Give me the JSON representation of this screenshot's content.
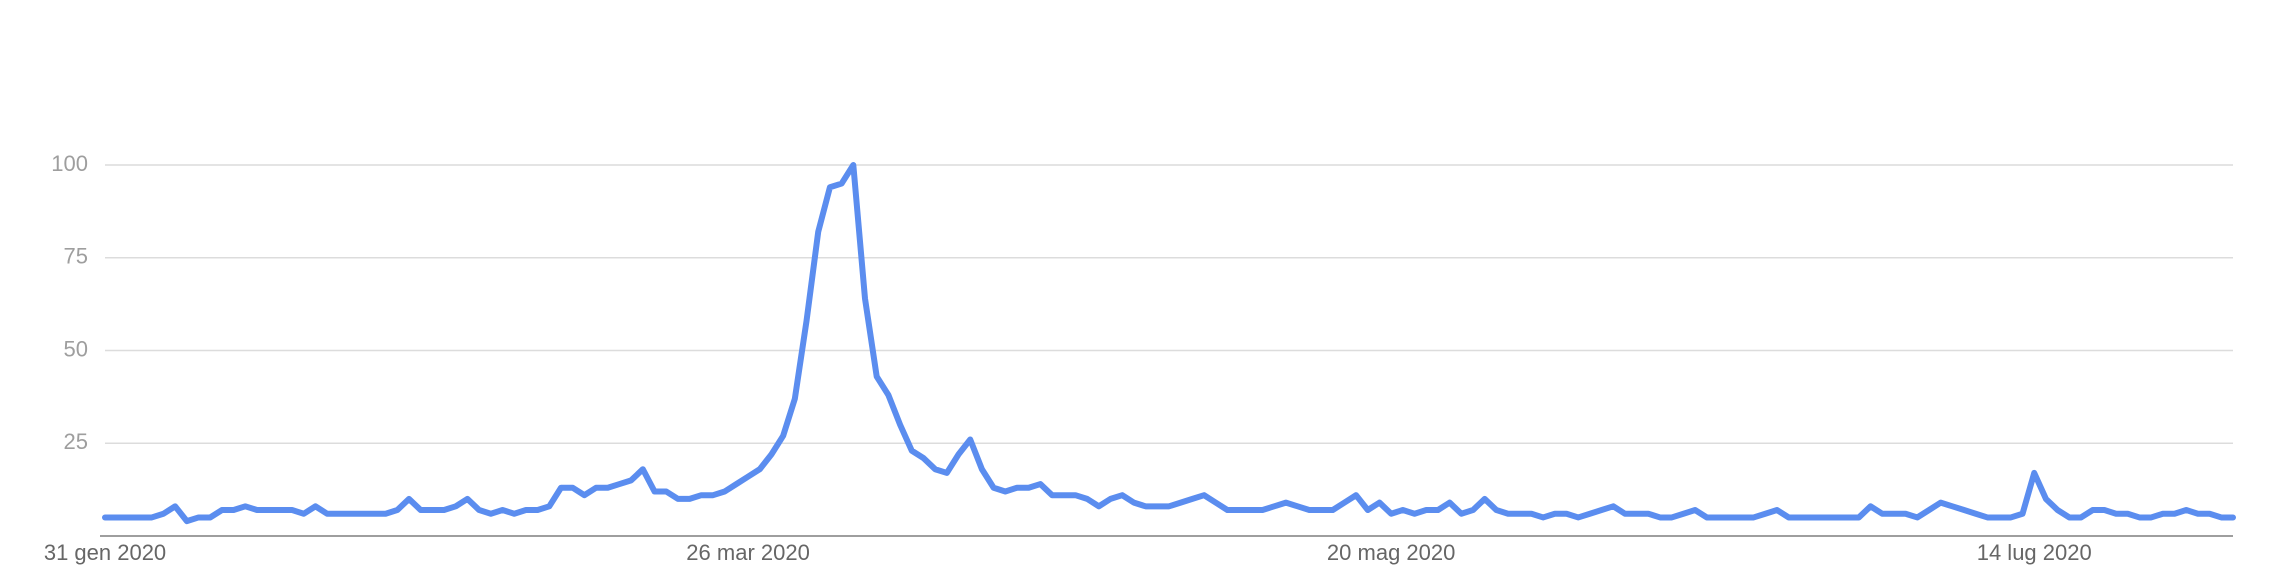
{
  "chart_data": {
    "type": "line",
    "categories": [
      "31 gen 2020",
      null,
      null,
      null,
      null,
      null,
      null,
      null,
      null,
      null,
      null,
      null,
      null,
      null,
      null,
      null,
      null,
      null,
      null,
      null,
      null,
      null,
      null,
      null,
      null,
      null,
      null,
      null,
      null,
      null,
      null,
      null,
      null,
      null,
      null,
      null,
      null,
      null,
      null,
      null,
      null,
      null,
      null,
      null,
      null,
      null,
      null,
      null,
      null,
      null,
      null,
      null,
      null,
      null,
      null,
      "26 mar 2020",
      null,
      null,
      null,
      null,
      null,
      null,
      null,
      null,
      null,
      null,
      null,
      null,
      null,
      null,
      null,
      null,
      null,
      null,
      null,
      null,
      null,
      null,
      null,
      null,
      null,
      null,
      null,
      null,
      null,
      null,
      null,
      null,
      null,
      null,
      null,
      null,
      null,
      null,
      null,
      null,
      null,
      null,
      null,
      null,
      null,
      null,
      null,
      null,
      null,
      null,
      null,
      null,
      null,
      null,
      "20 mag 2020",
      null,
      null,
      null,
      null,
      null,
      null,
      null,
      null,
      null,
      null,
      null,
      null,
      null,
      null,
      null,
      null,
      null,
      null,
      null,
      null,
      null,
      null,
      null,
      null,
      null,
      null,
      null,
      null,
      null,
      null,
      null,
      null,
      null,
      null,
      null,
      null,
      null,
      null,
      null,
      null,
      null,
      null,
      null,
      null,
      null,
      null,
      null,
      null,
      null,
      null,
      null,
      null,
      null,
      null,
      "14 lug 2020",
      null,
      null,
      null,
      null,
      null,
      null,
      null,
      null,
      null,
      null,
      null,
      null,
      null,
      null,
      null,
      null,
      null
    ],
    "values": [
      5,
      5,
      5,
      5,
      5,
      6,
      8,
      4,
      5,
      5,
      7,
      7,
      8,
      7,
      7,
      7,
      7,
      6,
      8,
      6,
      6,
      6,
      6,
      6,
      6,
      7,
      10,
      7,
      7,
      7,
      8,
      10,
      7,
      6,
      7,
      6,
      7,
      7,
      8,
      13,
      13,
      11,
      13,
      13,
      14,
      15,
      18,
      12,
      12,
      10,
      10,
      11,
      11,
      12,
      14,
      16,
      18,
      22,
      27,
      37,
      58,
      82,
      94,
      95,
      100,
      64,
      43,
      38,
      30,
      23,
      21,
      18,
      17,
      22,
      26,
      18,
      13,
      12,
      13,
      13,
      14,
      11,
      11,
      11,
      10,
      8,
      10,
      11,
      9,
      8,
      8,
      8,
      9,
      10,
      11,
      9,
      7,
      7,
      7,
      7,
      8,
      9,
      8,
      7,
      7,
      7,
      9,
      11,
      7,
      9,
      6,
      7,
      6,
      7,
      7,
      9,
      6,
      7,
      10,
      7,
      6,
      6,
      6,
      5,
      6,
      6,
      5,
      6,
      7,
      8,
      6,
      6,
      6,
      5,
      5,
      6,
      7,
      5,
      5,
      5,
      5,
      5,
      6,
      7,
      5,
      5,
      5,
      5,
      5,
      5,
      5,
      8,
      6,
      6,
      6,
      5,
      7,
      9,
      8,
      7,
      6,
      5,
      5,
      5,
      6,
      17,
      10,
      7,
      5,
      5,
      7,
      7,
      6,
      6,
      5,
      5,
      6,
      6,
      7,
      6,
      6,
      5,
      5
    ],
    "color": "#5b8def",
    "ylim": [
      0,
      100
    ],
    "yticks": [
      25,
      50,
      75,
      100
    ],
    "grid": true
  }
}
